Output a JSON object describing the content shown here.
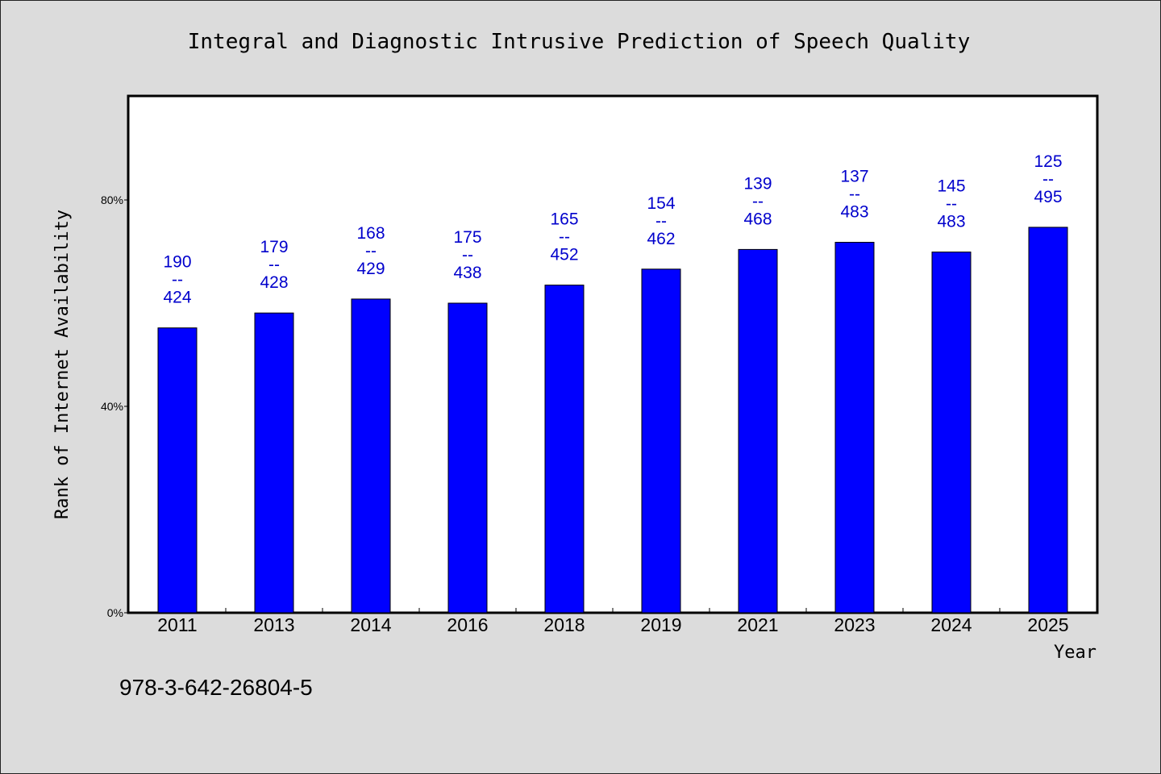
{
  "chart_data": {
    "type": "bar",
    "title": "Integral and Diagnostic Intrusive Prediction of Speech Quality",
    "xlabel": "Year",
    "ylabel": "Rank of Internet Availability",
    "categories": [
      "2011",
      "2013",
      "2014",
      "2016",
      "2018",
      "2019",
      "2021",
      "2023",
      "2024",
      "2025"
    ],
    "values": [
      55.2,
      58.1,
      60.8,
      60.0,
      63.5,
      66.6,
      70.4,
      71.8,
      69.9,
      74.7
    ],
    "value_unit": "%",
    "annotations": [
      {
        "top": "190",
        "sep": "--",
        "bottom": "424"
      },
      {
        "top": "179",
        "sep": "--",
        "bottom": "428"
      },
      {
        "top": "168",
        "sep": "--",
        "bottom": "429"
      },
      {
        "top": "175",
        "sep": "--",
        "bottom": "438"
      },
      {
        "top": "165",
        "sep": "--",
        "bottom": "452"
      },
      {
        "top": "154",
        "sep": "--",
        "bottom": "462"
      },
      {
        "top": "139",
        "sep": "--",
        "bottom": "468"
      },
      {
        "top": "137",
        "sep": "--",
        "bottom": "483"
      },
      {
        "top": "145",
        "sep": "--",
        "bottom": "483"
      },
      {
        "top": "125",
        "sep": "--",
        "bottom": "495"
      }
    ],
    "yticks": [
      {
        "value": 0,
        "label": "0%"
      },
      {
        "value": 40,
        "label": "40%"
      },
      {
        "value": 80,
        "label": "80%"
      }
    ],
    "ylim": [
      0,
      100
    ],
    "grid": false,
    "legend": "none",
    "colors": {
      "bar": "#0000ff",
      "label": "#0000cc",
      "background": "#dcdcdc",
      "plot_area": "#ffffff"
    }
  },
  "footnote": "978-3-642-26804-5"
}
